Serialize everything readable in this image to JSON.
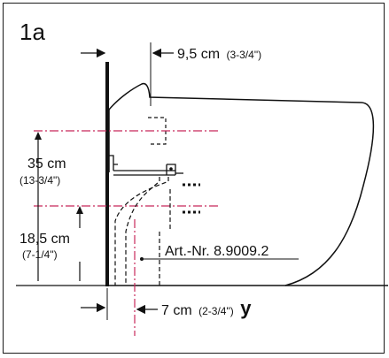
{
  "figure_id": "1a",
  "dimensions": {
    "top_offset": {
      "value": "9,5 cm",
      "imperial": "(3-3/4\")"
    },
    "height_total": {
      "value": "35 cm",
      "imperial": "(13-3/4\")"
    },
    "height_drain": {
      "value": "18,5 cm",
      "imperial": "(7-1/4\")"
    },
    "bottom_offset": {
      "value": "7 cm",
      "imperial": "(2-3/4\")",
      "marker": "y"
    }
  },
  "part_label": "Art.-Nr. 8.9009.2",
  "colors": {
    "line": "#111111",
    "axis": "#c8285a",
    "border": "#1a1a1a"
  }
}
